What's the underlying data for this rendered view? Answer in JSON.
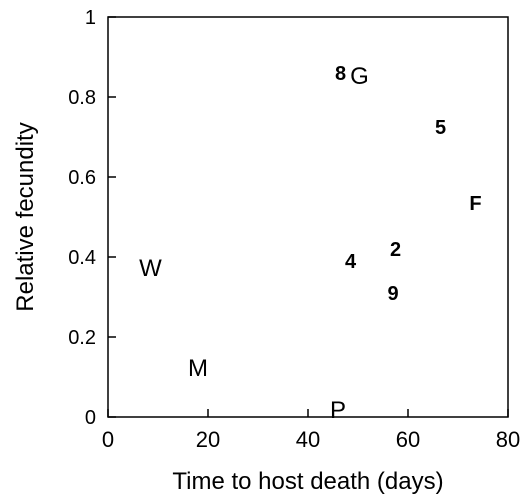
{
  "chart_data": {
    "type": "scatter",
    "title": "",
    "xlabel": "Time to host death (days)",
    "ylabel": "Relative fecundity",
    "xlim": [
      0,
      80
    ],
    "ylim": [
      0,
      1
    ],
    "grid": false,
    "legend": "none",
    "x_ticks": [
      {
        "value": 0,
        "label": "0"
      },
      {
        "value": 20,
        "label": "20"
      },
      {
        "value": 40,
        "label": "40"
      },
      {
        "value": 60,
        "label": "60"
      },
      {
        "value": 80,
        "label": "80"
      }
    ],
    "y_ticks": [
      {
        "value": 0,
        "label": "0"
      },
      {
        "value": 0.2,
        "label": "0.2"
      },
      {
        "value": 0.4,
        "label": "0.4"
      },
      {
        "value": 0.6,
        "label": "0.6"
      },
      {
        "value": 0.8,
        "label": "0.8"
      },
      {
        "value": 1,
        "label": "1"
      }
    ],
    "points": [
      {
        "label": "8",
        "x": 46.5,
        "y": 0.865,
        "bold": true
      },
      {
        "label": "G",
        "x": 50.3,
        "y": 0.855,
        "bold": false
      },
      {
        "label": "5",
        "x": 66.5,
        "y": 0.73,
        "bold": true
      },
      {
        "label": "F",
        "x": 73.5,
        "y": 0.54,
        "bold": true
      },
      {
        "label": "2",
        "x": 57.5,
        "y": 0.425,
        "bold": true
      },
      {
        "label": "4",
        "x": 48.5,
        "y": 0.395,
        "bold": true
      },
      {
        "label": "W",
        "x": 8.5,
        "y": 0.375,
        "bold": false
      },
      {
        "label": "9",
        "x": 57.0,
        "y": 0.315,
        "bold": true
      },
      {
        "label": "M",
        "x": 18.0,
        "y": 0.125,
        "bold": false
      },
      {
        "label": "P",
        "x": 46.0,
        "y": 0.02,
        "bold": false
      }
    ]
  }
}
